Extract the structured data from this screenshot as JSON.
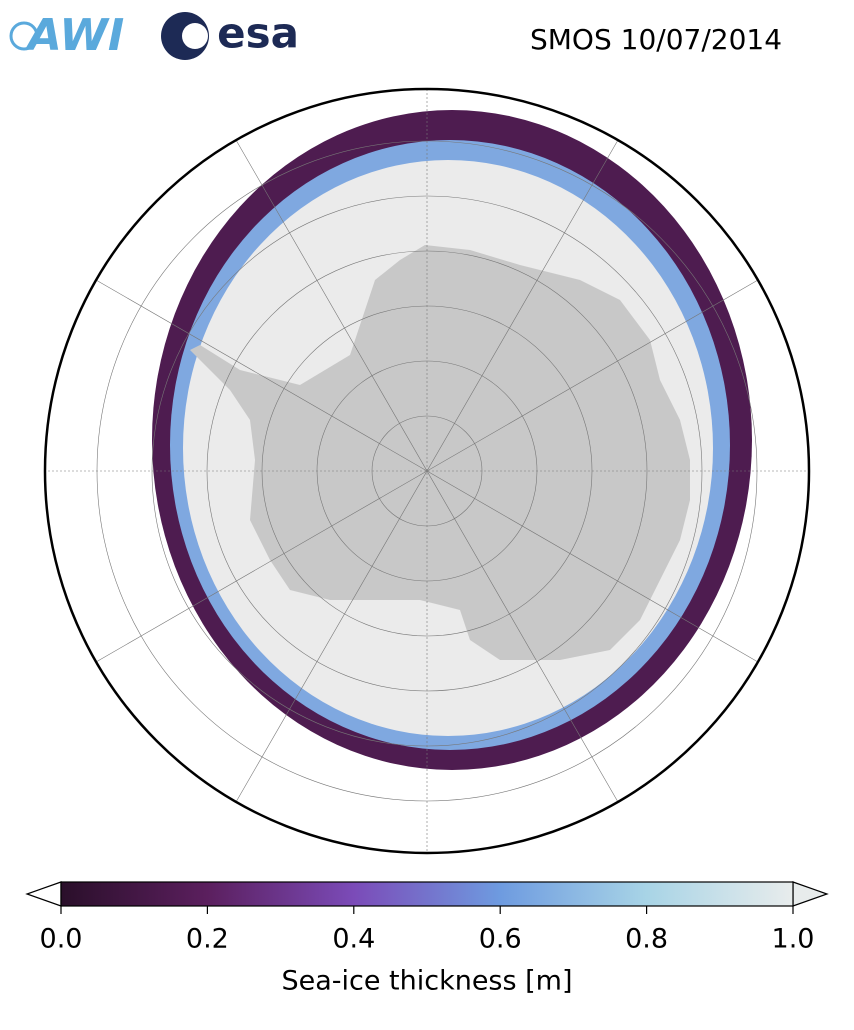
{
  "header": {
    "logos": [
      "AWI",
      "esa"
    ],
    "title": "SMOS 10/07/2014"
  },
  "colorbar": {
    "label": "Sea-ice thickness [m]",
    "lim": [
      0,
      1
    ],
    "ticks": [
      {
        "value": 0,
        "label": "0.0"
      },
      {
        "value": 0.2,
        "label": "0.2"
      },
      {
        "value": 0.4,
        "label": "0.4"
      },
      {
        "value": 0.6,
        "label": "0.6"
      },
      {
        "value": 0.8,
        "label": "0.8"
      },
      {
        "value": 1,
        "label": "1.0"
      }
    ],
    "colors": [
      "#2a0f2a",
      "#5b1f5e",
      "#7b4bb8",
      "#6e9be0",
      "#a8d4e6",
      "#e8ecec"
    ]
  }
}
